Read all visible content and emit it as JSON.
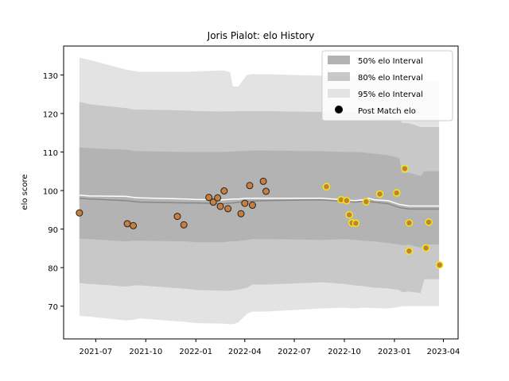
{
  "chart_data": {
    "type": "scatter",
    "title": "Joris Pialot: elo History",
    "xlabel": "",
    "ylabel": "elo score",
    "xlim": [
      "2021-05-03",
      "2023-04-28"
    ],
    "ylim": [
      61.5,
      137.5
    ],
    "x_ticks": [
      "2021-07-01",
      "2021-10-01",
      "2022-01-01",
      "2022-04-01",
      "2022-07-01",
      "2022-10-01",
      "2023-01-01",
      "2023-04-01"
    ],
    "x_tick_labels": [
      "2021-07",
      "2021-10",
      "2022-01",
      "2022-04",
      "2022-07",
      "2022-10",
      "2023-01",
      "2023-04"
    ],
    "y_ticks": [
      70,
      80,
      90,
      100,
      110,
      120,
      130
    ],
    "y_tick_labels": [
      "70",
      "80",
      "90",
      "100",
      "110",
      "120",
      "130"
    ],
    "grid": false,
    "legend_position": "top-right",
    "legend": [
      {
        "label": "50% elo Interval",
        "kind": "band50"
      },
      {
        "label": "80% elo Interval",
        "kind": "band80"
      },
      {
        "label": "95% elo Interval",
        "kind": "band95"
      },
      {
        "label": "Post Match elo",
        "kind": "point"
      }
    ],
    "colors": {
      "band50": "#b3b3b3",
      "band80": "#c8c8c8",
      "band95": "#e3e3e3",
      "mean_line": "#ffffff",
      "prior_line": "#888888",
      "point_old": "#c87e3c",
      "point_recent_fill": "#c87e3c",
      "point_recent_edge": "#f0f000",
      "point_edge": "#222222"
    },
    "bands": {
      "dates": [
        "2021-06-01",
        "2021-06-20",
        "2021-08-25",
        "2021-09-10",
        "2021-09-20",
        "2021-12-15",
        "2022-01-01",
        "2022-02-20",
        "2022-03-05",
        "2022-03-10",
        "2022-03-20",
        "2022-04-05",
        "2022-04-15",
        "2022-05-10",
        "2022-08-20",
        "2022-10-01",
        "2022-10-20",
        "2022-11-05",
        "2022-11-25",
        "2022-12-20",
        "2023-01-10",
        "2023-01-15",
        "2023-01-28",
        "2023-02-18",
        "2023-02-25",
        "2023-03-24"
      ],
      "lo95": [
        67.5,
        67.3,
        66.3,
        66.5,
        66.8,
        65.9,
        65.6,
        65.5,
        65.3,
        65.3,
        65.8,
        68.0,
        68.6,
        68.6,
        69.4,
        69.6,
        69.4,
        69.6,
        69.5,
        69.4,
        69.8,
        70.0,
        70.0,
        70.0,
        70.0,
        70.0
      ],
      "hi95": [
        134.5,
        133.9,
        131.4,
        131.0,
        130.8,
        130.8,
        130.9,
        131.2,
        130.7,
        127.0,
        127.0,
        130.0,
        130.2,
        130.2,
        129.8,
        129.6,
        129.6,
        129.5,
        129.6,
        129.6,
        129.8,
        128.8,
        128.8,
        128.3,
        128.3,
        128.3
      ],
      "lo80": [
        76.0,
        75.8,
        75.1,
        75.4,
        75.4,
        74.5,
        74.2,
        74.0,
        74.0,
        74.1,
        74.3,
        74.8,
        75.6,
        75.6,
        76.2,
        75.8,
        75.4,
        75.2,
        74.8,
        74.6,
        74.2,
        73.6,
        73.8,
        73.4,
        77.0,
        77.0
      ],
      "hi80": [
        123.0,
        122.4,
        121.4,
        121.0,
        121.0,
        120.8,
        120.6,
        120.5,
        120.6,
        120.5,
        120.6,
        120.6,
        120.6,
        120.6,
        120.4,
        120.4,
        120.0,
        120.0,
        119.6,
        119.2,
        118.8,
        117.5,
        117.5,
        116.5,
        116.5,
        116.5
      ],
      "lo50": [
        87.5,
        87.4,
        86.8,
        87.0,
        87.0,
        86.8,
        86.6,
        86.6,
        86.8,
        86.8,
        86.9,
        87.2,
        87.4,
        87.4,
        87.2,
        87.4,
        87.2,
        87.0,
        86.8,
        86.4,
        86.0,
        85.8,
        86.0,
        85.2,
        86.0,
        86.0
      ],
      "hi50": [
        111.2,
        111.0,
        110.6,
        110.3,
        110.2,
        110.0,
        110.0,
        110.0,
        110.1,
        110.1,
        110.2,
        110.3,
        110.4,
        110.4,
        110.2,
        110.0,
        110.0,
        109.9,
        109.6,
        109.2,
        108.4,
        104.6,
        104.6,
        103.8,
        105.0,
        105.0
      ]
    },
    "mean_line": {
      "dates": [
        "2021-06-01",
        "2021-06-20",
        "2021-08-25",
        "2021-09-10",
        "2021-09-20",
        "2021-12-15",
        "2022-01-01",
        "2022-02-20",
        "2022-03-10",
        "2022-03-20",
        "2022-04-05",
        "2022-04-15",
        "2022-05-10",
        "2022-08-20",
        "2022-10-01",
        "2022-10-20",
        "2022-11-05",
        "2022-11-15",
        "2022-11-25",
        "2022-12-20",
        "2023-01-10",
        "2023-01-28",
        "2023-03-24"
      ],
      "values": [
        98.8,
        98.6,
        98.5,
        98.2,
        98.1,
        97.8,
        97.7,
        97.6,
        97.8,
        97.8,
        98.0,
        98.0,
        98.0,
        98.0,
        97.6,
        97.4,
        97.6,
        98.0,
        97.6,
        97.4,
        96.4,
        96.0,
        96.0
      ]
    },
    "prior_line": {
      "dates": [
        "2021-06-01",
        "2021-06-20",
        "2021-08-25",
        "2021-09-20",
        "2021-12-15",
        "2022-01-01",
        "2022-02-20",
        "2022-03-10",
        "2022-04-05",
        "2022-05-10",
        "2022-08-20",
        "2022-10-01",
        "2022-10-20",
        "2022-11-05",
        "2022-11-25",
        "2022-12-20",
        "2023-01-10",
        "2023-01-28",
        "2023-03-24"
      ],
      "values": [
        98.0,
        97.8,
        97.4,
        97.0,
        96.8,
        96.8,
        96.6,
        96.8,
        97.2,
        97.4,
        97.6,
        97.2,
        97.0,
        97.2,
        97.0,
        96.6,
        95.6,
        95.2,
        95.2
      ]
    },
    "points": [
      {
        "date": "2021-06-01",
        "elo": 94.2,
        "recent": false
      },
      {
        "date": "2021-08-28",
        "elo": 91.4,
        "recent": false
      },
      {
        "date": "2021-09-08",
        "elo": 90.9,
        "recent": false
      },
      {
        "date": "2021-11-28",
        "elo": 93.3,
        "recent": false
      },
      {
        "date": "2021-12-10",
        "elo": 91.1,
        "recent": false
      },
      {
        "date": "2022-01-25",
        "elo": 98.2,
        "recent": false
      },
      {
        "date": "2022-02-02",
        "elo": 97.0,
        "recent": false
      },
      {
        "date": "2022-02-10",
        "elo": 98.1,
        "recent": false
      },
      {
        "date": "2022-02-15",
        "elo": 95.9,
        "recent": false
      },
      {
        "date": "2022-02-22",
        "elo": 99.9,
        "recent": false
      },
      {
        "date": "2022-03-01",
        "elo": 95.3,
        "recent": false
      },
      {
        "date": "2022-03-25",
        "elo": 94.0,
        "recent": false
      },
      {
        "date": "2022-04-01",
        "elo": 96.7,
        "recent": false
      },
      {
        "date": "2022-04-10",
        "elo": 101.3,
        "recent": false
      },
      {
        "date": "2022-04-15",
        "elo": 96.2,
        "recent": false
      },
      {
        "date": "2022-05-05",
        "elo": 102.4,
        "recent": false
      },
      {
        "date": "2022-05-10",
        "elo": 99.8,
        "recent": false
      },
      {
        "date": "2022-08-29",
        "elo": 101.0,
        "recent": true
      },
      {
        "date": "2022-09-25",
        "elo": 97.6,
        "recent": true
      },
      {
        "date": "2022-10-05",
        "elo": 97.4,
        "recent": true
      },
      {
        "date": "2022-10-10",
        "elo": 93.7,
        "recent": true
      },
      {
        "date": "2022-10-15",
        "elo": 91.6,
        "recent": true
      },
      {
        "date": "2022-10-22",
        "elo": 91.5,
        "recent": true
      },
      {
        "date": "2022-11-10",
        "elo": 97.1,
        "recent": true
      },
      {
        "date": "2022-12-05",
        "elo": 99.1,
        "recent": true
      },
      {
        "date": "2023-01-05",
        "elo": 99.4,
        "recent": true
      },
      {
        "date": "2023-01-20",
        "elo": 105.7,
        "recent": true
      },
      {
        "date": "2023-01-28",
        "elo": 84.3,
        "recent": true
      },
      {
        "date": "2023-01-28",
        "elo": 91.6,
        "recent": true
      },
      {
        "date": "2023-02-28",
        "elo": 85.1,
        "recent": true
      },
      {
        "date": "2023-03-05",
        "elo": 91.8,
        "recent": true
      },
      {
        "date": "2023-03-25",
        "elo": 80.7,
        "recent": true
      }
    ]
  }
}
